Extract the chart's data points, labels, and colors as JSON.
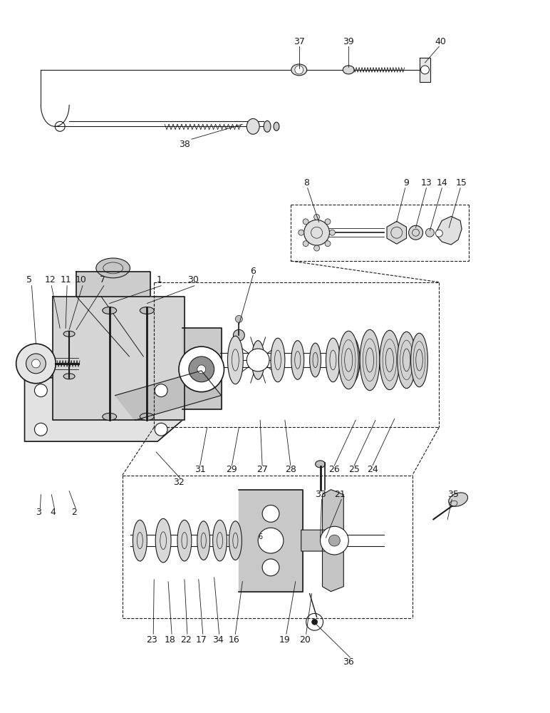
{
  "bg_color": "#ffffff",
  "line_color": "#1a1a1a",
  "label_color": "#1a1a1a",
  "label_fontsize": 9,
  "fig_width": 7.72,
  "fig_height": 10.0
}
